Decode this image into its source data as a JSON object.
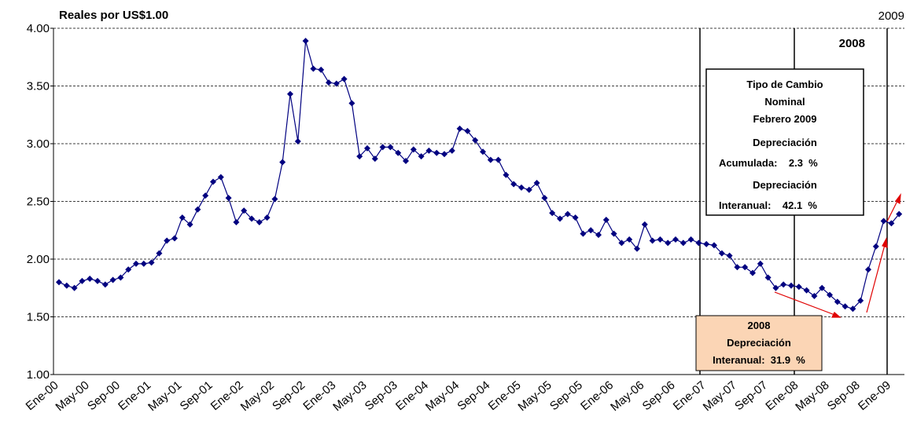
{
  "chart_data": {
    "type": "line",
    "axis_title": "Reales por US$1.00",
    "categories": [
      "Ene-00",
      null,
      null,
      null,
      "May-00",
      null,
      null,
      null,
      "Sep-00",
      null,
      null,
      null,
      "Ene-01",
      null,
      null,
      null,
      "May-01",
      null,
      null,
      null,
      "Sep-01",
      null,
      null,
      null,
      "Ene-02",
      null,
      null,
      null,
      "May-02",
      null,
      null,
      null,
      "Sep-02",
      null,
      null,
      null,
      "Ene-03",
      null,
      null,
      null,
      "May-03",
      null,
      null,
      null,
      "Sep-03",
      null,
      null,
      null,
      "Ene-04",
      null,
      null,
      null,
      "May-04",
      null,
      null,
      null,
      "Sep-04",
      null,
      null,
      null,
      "Ene-05",
      null,
      null,
      null,
      "May-05",
      null,
      null,
      null,
      "Sep-05",
      null,
      null,
      null,
      "Ene-06",
      null,
      null,
      null,
      "May-06",
      null,
      null,
      null,
      "Sep-06",
      null,
      null,
      null,
      "Ene-07",
      null,
      null,
      null,
      "May-07",
      null,
      null,
      null,
      "Sep-07",
      null,
      null,
      null,
      "Ene-08",
      null,
      null,
      null,
      "May-08",
      null,
      null,
      null,
      "Sep-08",
      null,
      null,
      null,
      "Ene-09",
      null
    ],
    "series": [
      {
        "color": "#000080",
        "values": [
          1.8,
          1.77,
          1.75,
          1.81,
          1.83,
          1.81,
          1.78,
          1.82,
          1.84,
          1.91,
          1.96,
          1.96,
          1.97,
          2.05,
          2.16,
          2.18,
          2.36,
          2.3,
          2.43,
          2.55,
          2.67,
          2.71,
          2.53,
          2.32,
          2.42,
          2.35,
          2.32,
          2.36,
          2.52,
          2.84,
          3.43,
          3.02,
          3.89,
          3.65,
          3.64,
          3.53,
          3.52,
          3.56,
          3.35,
          2.89,
          2.96,
          2.87,
          2.97,
          2.97,
          2.92,
          2.85,
          2.95,
          2.89,
          2.94,
          2.92,
          2.91,
          2.94,
          3.13,
          3.11,
          3.03,
          2.93,
          2.86,
          2.86,
          2.73,
          2.65,
          2.62,
          2.6,
          2.66,
          2.53,
          2.4,
          2.35,
          2.39,
          2.36,
          2.22,
          2.25,
          2.21,
          2.34,
          2.22,
          2.14,
          2.17,
          2.09,
          2.3,
          2.16,
          2.17,
          2.14,
          2.17,
          2.14,
          2.17,
          2.14,
          2.13,
          2.12,
          2.05,
          2.03,
          1.93,
          1.93,
          1.88,
          1.96,
          1.84,
          1.75,
          1.78,
          1.77,
          1.76,
          1.73,
          1.68,
          1.75,
          1.69,
          1.63,
          1.59,
          1.57,
          1.64,
          1.91,
          2.11,
          2.33,
          2.31,
          2.39
        ]
      }
    ],
    "ylim": [
      1,
      4
    ],
    "yticks": [
      {
        "value": 1,
        "label": "1.00"
      },
      {
        "value": 1.5,
        "label": "1.50"
      },
      {
        "value": 2,
        "label": "2.00"
      },
      {
        "value": 2.5,
        "label": "2.50"
      },
      {
        "value": 3,
        "label": "3.00"
      },
      {
        "value": 3.5,
        "label": "3.50"
      },
      {
        "value": 4,
        "label": "4.00"
      }
    ],
    "grid": true,
    "annotations": {
      "year_2009": "2009",
      "year_2008": "2008",
      "box": [
        "Tipo de Cambio",
        "Nominal",
        "Febrero 2009",
        "Depreciación",
        "Acumulada:    2.3  %",
        "Depreciación",
        "Interanual:    42.1  %"
      ],
      "box_2008": [
        "2008",
        "Depreciación",
        "Interanual:  31.9  %"
      ]
    }
  }
}
